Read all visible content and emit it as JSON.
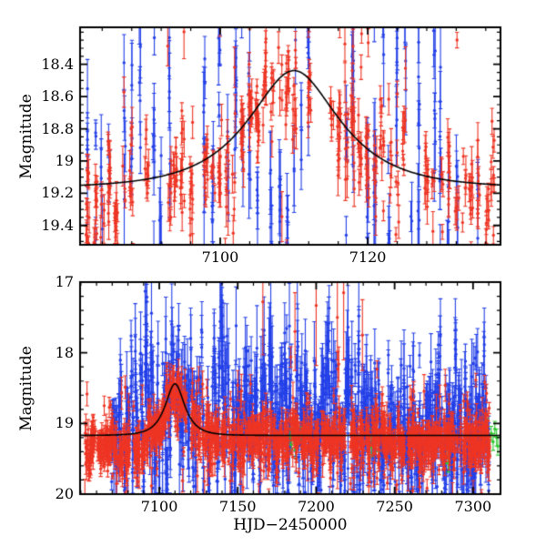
{
  "colors": {
    "red": "#ee3524",
    "blue": "#2440e8",
    "green": "#2dc82d",
    "model": "#000000",
    "frame": "#000000",
    "background": "#ffffff",
    "text": "#000000"
  },
  "seed": 42,
  "chart_data": [
    {
      "panel": "top-zoom-on-event",
      "type": "scatter",
      "title": "",
      "ylabel": "Magnitude",
      "xlabel": "",
      "xlim": [
        7081,
        7138
      ],
      "ylim": [
        18.17,
        19.52
      ],
      "y_inverted": true,
      "grid": false,
      "x_major_ticks": [
        7100,
        7120
      ],
      "x_tick_labels": [
        "7100",
        "7120"
      ],
      "x_minor_step": 4,
      "y_major_ticks": [
        18.4,
        18.6,
        18.8,
        19.0,
        19.2,
        19.4
      ],
      "y_tick_labels": [
        "18.4",
        "18.6",
        "18.8",
        "19",
        "19.2",
        "19.4"
      ],
      "y_minor_step": 0.05,
      "model_curve": {
        "shape": "paczynski_microlensing",
        "t0": 7110,
        "tE": 10,
        "u0": 0.57,
        "baseline_mag": 19.17,
        "peak_mag": 18.47
      },
      "series": [
        {
          "name": "survey-blue",
          "color": "blue",
          "marker": "circle-errorbar",
          "nightly": true,
          "t_start": 7082,
          "t_end": 7137.7,
          "points_per_night": [
            3,
            10
          ],
          "night_drop_prob": 0.18,
          "gaps": [
            [
              7113,
              7116
            ]
          ],
          "model_coupling": 0.3,
          "center_mag": 18.9,
          "mag_offset": 0,
          "night_sigma": 0.38,
          "sigma": 0.28,
          "outlier_prob": 0.25,
          "outlier_sigma": 0.45,
          "err_min": 0.06,
          "err_max": 0.25,
          "jitter": 0.12
        },
        {
          "name": "survey-red",
          "color": "red",
          "marker": "circle-errorbar",
          "nightly": true,
          "t_start": 7081.3,
          "t_end": 7137.7,
          "points_per_night": [
            5,
            14
          ],
          "night_drop_prob": 0.1,
          "gaps": [
            [
              7112.3,
              7114.6
            ],
            [
              7125.3,
              7127.6
            ]
          ],
          "model_coupling": 1,
          "center_mag": 19.17,
          "mag_offset": 0.05,
          "night_sigma": 0.1,
          "sigma": 0.13,
          "outlier_prob": 0.22,
          "outlier_sigma": 0.5,
          "err_min": 0.03,
          "err_max": 0.12,
          "jitter": 0.25
        }
      ]
    },
    {
      "panel": "bottom-full-season",
      "type": "scatter",
      "title": "",
      "ylabel": "Magnitude",
      "xlabel": "HJD−2450000",
      "xlim": [
        7049.5,
        7317.5
      ],
      "ylim": [
        17.0,
        20.0
      ],
      "y_inverted": true,
      "grid": false,
      "x_major_ticks": [
        7100,
        7150,
        7200,
        7250,
        7300
      ],
      "x_tick_labels": [
        "7100",
        "7150",
        "7200",
        "7250",
        "7300"
      ],
      "x_minor_step": 10,
      "y_major_ticks": [
        17,
        18,
        19,
        20
      ],
      "y_tick_labels": [
        "17",
        "18",
        "19",
        "20"
      ],
      "y_minor_step": 0.2,
      "model_curve": {
        "shape": "paczynski_microlensing",
        "t0": 7110,
        "tE": 10,
        "u0": 0.57,
        "baseline_mag": 19.17,
        "peak_mag": 18.47
      },
      "series": [
        {
          "name": "survey-blue",
          "color": "blue",
          "marker": "circle-errorbar",
          "nightly": true,
          "t_start": 7068,
          "t_end": 7310.5,
          "points_per_night": [
            4,
            10
          ],
          "night_drop_prob": 0.1,
          "gaps": [],
          "model_coupling": 0.25,
          "center_mag": 18.95,
          "mag_offset": 0,
          "night_sigma": 0.42,
          "sigma": 0.3,
          "outlier_prob": 0.2,
          "outlier_sigma": 0.5,
          "err_min": 0.08,
          "err_max": 0.4,
          "jitter": 0.3
        },
        {
          "name": "survey-green",
          "color": "green",
          "marker": "circle-errorbar",
          "points": [
            [
              7183.5,
              19.18,
              0.12
            ],
            [
              7184.3,
              19.3,
              0.14
            ],
            [
              7185.1,
              19.08,
              0.1
            ],
            [
              7186.2,
              19.26,
              0.12
            ],
            [
              7187.0,
              19.36,
              0.13
            ],
            [
              7190.4,
              19.15,
              0.1
            ],
            [
              7233.6,
              19.2,
              0.12
            ],
            [
              7235.2,
              19.33,
              0.14
            ],
            [
              7237.8,
              19.1,
              0.1
            ],
            [
              7239.5,
              19.28,
              0.12
            ],
            [
              7283.0,
              19.45,
              0.12
            ],
            [
              7284.2,
              19.55,
              0.14
            ],
            [
              7306.5,
              19.12,
              0.12
            ],
            [
              7307.8,
              19.22,
              0.1
            ],
            [
              7309.0,
              19.05,
              0.12
            ],
            [
              7310.4,
              19.3,
              0.13
            ],
            [
              7311.6,
              19.14,
              0.1
            ],
            [
              7312.8,
              19.26,
              0.12
            ],
            [
              7313.9,
              19.08,
              0.11
            ],
            [
              7315.0,
              19.2,
              0.12
            ],
            [
              7315.8,
              19.32,
              0.13
            ]
          ]
        },
        {
          "name": "survey-red",
          "color": "red",
          "marker": "circle-errorbar",
          "nightly": true,
          "t_start": 7052.5,
          "t_end": 7310.5,
          "points_per_night": [
            5,
            12
          ],
          "night_drop_prob": 0.08,
          "gaps": [
            [
              7117.5,
              7120.5
            ]
          ],
          "model_coupling": 1,
          "center_mag": 19.17,
          "mag_offset": 0.06,
          "early_until": 7092,
          "early_offset": 0.12,
          "night_sigma": 0.1,
          "sigma": 0.13,
          "outlier_prob": 0.15,
          "outlier_sigma": 0.4,
          "err_min": 0.03,
          "err_max": 0.18,
          "jitter": 0.45,
          "bright_outliers": [
            [
              7166.0,
              17.28,
              0.75
            ],
            [
              7186.5,
              17.7,
              0.55
            ],
            [
              7200.0,
              17.33,
              0.85
            ],
            [
              7213.5,
              17.5,
              0.6
            ],
            [
              7217.5,
              17.15,
              0.95
            ],
            [
              7229.5,
              17.75,
              0.5
            ]
          ]
        }
      ]
    }
  ]
}
